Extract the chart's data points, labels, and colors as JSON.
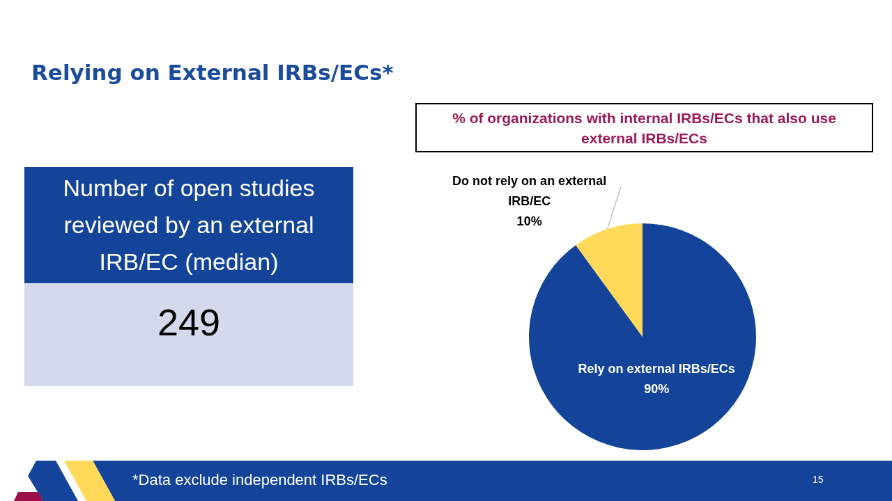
{
  "chart_data": [
    {
      "type": "other",
      "title": "Relying on External IRBs/ECs*",
      "subtitle": "Number of open studies reviewed by an external IRB/EC (median)",
      "annotations": [
        "249",
        "*Data exclude independent IRBs/ECs"
      ]
    },
    {
      "type": "pie",
      "title": "% of organizations with internal IRBs/ECs that also use external IRBs/ECs",
      "categories": [
        "Rely on external IRBs/ECs",
        "Do not rely on an external IRB/EC"
      ],
      "values": [
        90,
        10
      ],
      "colors": [
        "#13449a",
        "#ffd95a"
      ],
      "value_labels": [
        "90%",
        "10%"
      ],
      "annotations": [
        "15"
      ]
    }
  ]
}
